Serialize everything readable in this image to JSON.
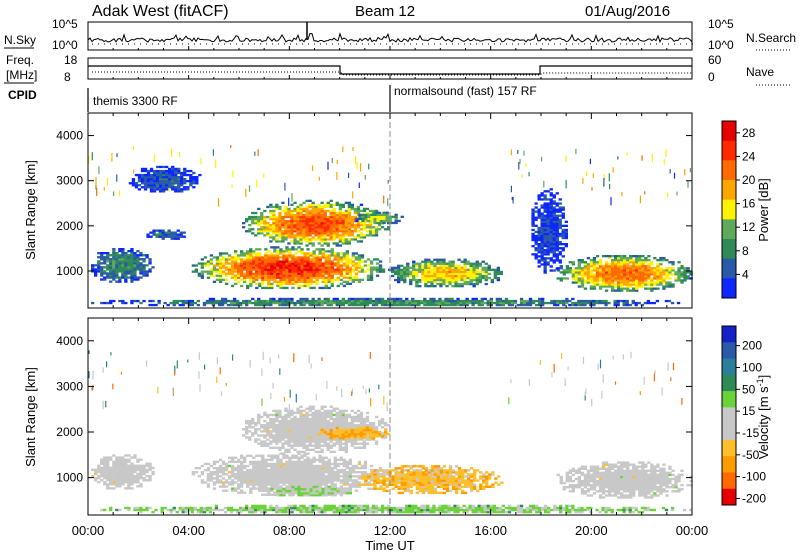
{
  "header": {
    "site": "Adak West (fitACF)",
    "beam": "Beam 12",
    "date": "01/Aug/2016"
  },
  "panels": {
    "nsky": {
      "left_label": "N.Sky",
      "right_label": "N.Search",
      "left_ticks": [
        "10^5",
        "10^0"
      ],
      "right_ticks": [
        "10^5",
        "10^0"
      ]
    },
    "freq": {
      "left_label_top": "Freq.",
      "left_label_unit": "[MHz]",
      "right_label": "Nave",
      "left_ticks": [
        "18",
        "8"
      ],
      "right_ticks": [
        "60",
        "0"
      ]
    },
    "cpid": {
      "label": "CPID",
      "programs": [
        {
          "name": "themis 3300 RF",
          "start_hour": 0
        },
        {
          "name": "normalsound (fast) 157 RF",
          "start_hour": 12
        }
      ]
    }
  },
  "colors": {
    "power": [
      "#0b26ff",
      "#2a59a8",
      "#2e8b57",
      "#5faa5a",
      "#fff200",
      "#ffa500",
      "#ff6a00",
      "#ff2a00",
      "#e60000"
    ],
    "velocity": [
      "#e60000",
      "#ff6a00",
      "#ff9a00",
      "#ffbf2a",
      "#c8c8c8",
      "#c8c8c8",
      "#6bd33a",
      "#2e8b57",
      "#2a7f9a",
      "#2a59a8",
      "#1420c8"
    ],
    "ground_scatter": "#c8c8c8"
  },
  "chart_data": [
    {
      "type": "heatmap",
      "name": "power",
      "xlabel": "Time UT",
      "ylabel": "Slant Range [km]",
      "xlim": [
        0,
        24
      ],
      "ylim": [
        180,
        4500
      ],
      "x_ticks": [
        "00:00",
        "04:00",
        "08:00",
        "12:00",
        "16:00",
        "20:00",
        "00:00"
      ],
      "y_ticks": [
        1000,
        2000,
        3000,
        4000
      ],
      "colorbar": {
        "label": "Power [dB]",
        "ticks": [
          4,
          8,
          12,
          16,
          20,
          24,
          28
        ],
        "range": [
          0,
          30
        ]
      },
      "echo_regions": [
        {
          "t": [
            0.0,
            2.6
          ],
          "r": [
            700,
            1500
          ],
          "peak_db": 9
        },
        {
          "t": [
            2.2,
            4.0
          ],
          "r": [
            1650,
            1900
          ],
          "peak_db": 6
        },
        {
          "t": [
            4.0,
            11.8
          ],
          "r": [
            560,
            1520
          ],
          "peak_db": 26
        },
        {
          "t": [
            11.8,
            16.5
          ],
          "r": [
            600,
            1260
          ],
          "peak_db": 18
        },
        {
          "t": [
            6.0,
            12.0
          ],
          "r": [
            1500,
            2550
          ],
          "peak_db": 24
        },
        {
          "t": [
            10.5,
            12.5
          ],
          "r": [
            2000,
            2300
          ],
          "peak_db": 14
        },
        {
          "t": [
            1.5,
            4.5
          ],
          "r": [
            2700,
            3300
          ],
          "peak_db": 5
        },
        {
          "t": [
            18.5,
            24.0
          ],
          "r": [
            500,
            1350
          ],
          "peak_db": 22
        },
        {
          "t": [
            17.5,
            19.0
          ],
          "r": [
            900,
            2800
          ],
          "peak_db": 4
        },
        {
          "t": [
            0.0,
            24.0
          ],
          "r": [
            180,
            380
          ],
          "peak_db": 10
        }
      ]
    },
    {
      "type": "heatmap",
      "name": "velocity",
      "xlabel": "Time UT",
      "ylabel": "Slant Range [km]",
      "xlim": [
        0,
        24
      ],
      "ylim": [
        180,
        4500
      ],
      "x_ticks": [
        "00:00",
        "04:00",
        "08:00",
        "12:00",
        "16:00",
        "20:00",
        "00:00"
      ],
      "y_ticks": [
        1000,
        2000,
        3000,
        4000
      ],
      "colorbar": {
        "label": "Velocity [m s^-1]",
        "ticks": [
          200,
          100,
          50,
          15,
          -15,
          -50,
          -100,
          -200
        ],
        "range": [
          -250,
          250
        ]
      },
      "echo_regions": [
        {
          "t": [
            0.0,
            2.6
          ],
          "r": [
            700,
            1500
          ],
          "velocity": 0
        },
        {
          "t": [
            4.0,
            11.8
          ],
          "r": [
            560,
            1520
          ],
          "velocity": 0
        },
        {
          "t": [
            6.0,
            12.0
          ],
          "r": [
            1500,
            2550
          ],
          "velocity": 0
        },
        {
          "t": [
            9.0,
            12.0
          ],
          "r": [
            1800,
            2100
          ],
          "velocity": -40
        },
        {
          "t": [
            7.0,
            10.5
          ],
          "r": [
            550,
            800
          ],
          "velocity": 20
        },
        {
          "t": [
            10.5,
            16.5
          ],
          "r": [
            600,
            1260
          ],
          "velocity": -35
        },
        {
          "t": [
            18.5,
            24.0
          ],
          "r": [
            500,
            1350
          ],
          "velocity": 0
        },
        {
          "t": [
            0.0,
            24.0
          ],
          "r": [
            180,
            380
          ],
          "velocity": 25
        }
      ]
    }
  ]
}
